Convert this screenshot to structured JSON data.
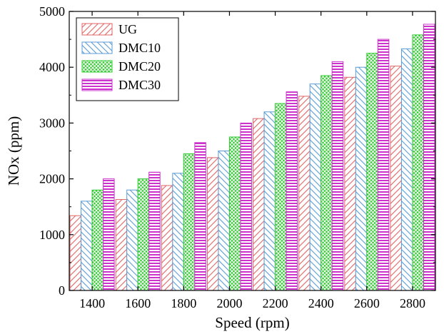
{
  "chart_data": {
    "type": "bar",
    "title": "",
    "xlabel": "Speed (rpm)",
    "ylabel": "NOx (ppm)",
    "categories": [
      "1400",
      "1600",
      "1800",
      "2000",
      "2200",
      "2400",
      "2600",
      "2800"
    ],
    "ylim": [
      0,
      5000
    ],
    "yticks": [
      "0",
      "1000",
      "2000",
      "3000",
      "4000",
      "5000"
    ],
    "series": [
      {
        "name": "UG",
        "color": "#e06666",
        "pattern": "diagonal-forward",
        "values": [
          1340,
          1630,
          1880,
          2380,
          3080,
          3480,
          3820,
          4020
        ]
      },
      {
        "name": "DMC10",
        "color": "#5b9bd5",
        "pattern": "diagonal-backward",
        "values": [
          1600,
          1800,
          2100,
          2500,
          3200,
          3700,
          4000,
          4330
        ]
      },
      {
        "name": "DMC20",
        "color": "#33cc33",
        "pattern": "crosshatch",
        "values": [
          1800,
          2000,
          2450,
          2750,
          3350,
          3850,
          4250,
          4580
        ]
      },
      {
        "name": "DMC30",
        "color": "#cc33cc",
        "pattern": "horizontal",
        "values": [
          2000,
          2120,
          2650,
          3000,
          3560,
          4100,
          4500,
          4770
        ]
      }
    ],
    "grid": false,
    "legend_position": "top-left"
  }
}
